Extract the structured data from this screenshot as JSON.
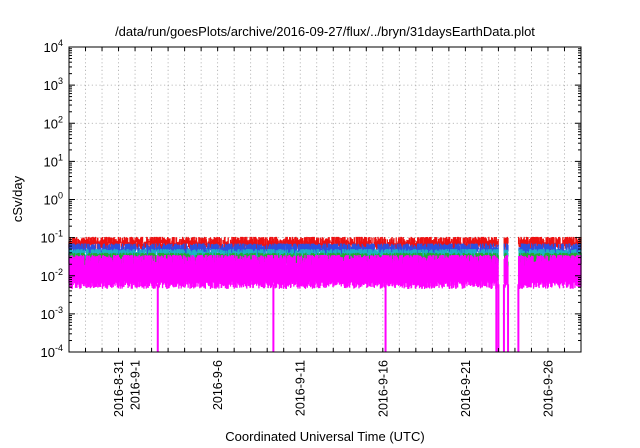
{
  "chart_data": {
    "type": "area",
    "title": "/data/run/goesPlots/archive/2016-09-27/flux/../bryn/31daysEarthData.plot",
    "xlabel": "Coordinated Universal Time (UTC)",
    "ylabel": "cSv/day",
    "yscale": "log",
    "ylim": [
      0.0001,
      10000
    ],
    "xlim": [
      "2016-08-28",
      "2016-09-28"
    ],
    "grid": true,
    "legend": "none",
    "yticks": [
      {
        "value": 0.0001,
        "base": "10",
        "exp": "-4"
      },
      {
        "value": 0.001,
        "base": "10",
        "exp": "-3"
      },
      {
        "value": 0.01,
        "base": "10",
        "exp": "-2"
      },
      {
        "value": 0.1,
        "base": "10",
        "exp": "-1"
      },
      {
        "value": 1,
        "base": "10",
        "exp": "0"
      },
      {
        "value": 10,
        "base": "10",
        "exp": "1"
      },
      {
        "value": 100,
        "base": "10",
        "exp": "2"
      },
      {
        "value": 1000,
        "base": "10",
        "exp": "3"
      },
      {
        "value": 10000,
        "base": "10",
        "exp": "4"
      }
    ],
    "xticks": [
      {
        "date": "2016-08-31",
        "label": "2016-8-31"
      },
      {
        "date": "2016-09-01",
        "label": "2016-9-1"
      },
      {
        "date": "2016-09-06",
        "label": "2016-9-6"
      },
      {
        "date": "2016-09-11",
        "label": "2016-9-11"
      },
      {
        "date": "2016-09-16",
        "label": "2016-9-16"
      },
      {
        "date": "2016-09-21",
        "label": "2016-9-21"
      },
      {
        "date": "2016-09-26",
        "label": "2016-9-26"
      }
    ],
    "series": [
      {
        "color": "#ee1111",
        "low": 0.045,
        "high": 0.105
      },
      {
        "color": "#2b4fe0",
        "low": 0.03,
        "high": 0.07
      },
      {
        "color": "#1bb4c4",
        "low": 0.02,
        "high": 0.05
      },
      {
        "color": "#22aa33",
        "low": 0.015,
        "high": 0.04
      },
      {
        "color": "#ff00ff",
        "low": 0.0045,
        "high": 0.035
      }
    ],
    "data_gaps": [
      {
        "start": "2016-09-23T00:00",
        "end": "2016-09-23T08:00"
      },
      {
        "start": "2016-09-23T14:00",
        "end": "2016-09-24T05:00"
      }
    ],
    "dropouts": [
      {
        "date": "2016-09-02T09:00",
        "min": 0.0001
      },
      {
        "date": "2016-09-09T09:00",
        "min": 0.0001
      },
      {
        "date": "2016-09-16T04:00",
        "min": 0.0001
      },
      {
        "date": "2016-09-22T21:00",
        "min": 0.0001
      }
    ]
  }
}
